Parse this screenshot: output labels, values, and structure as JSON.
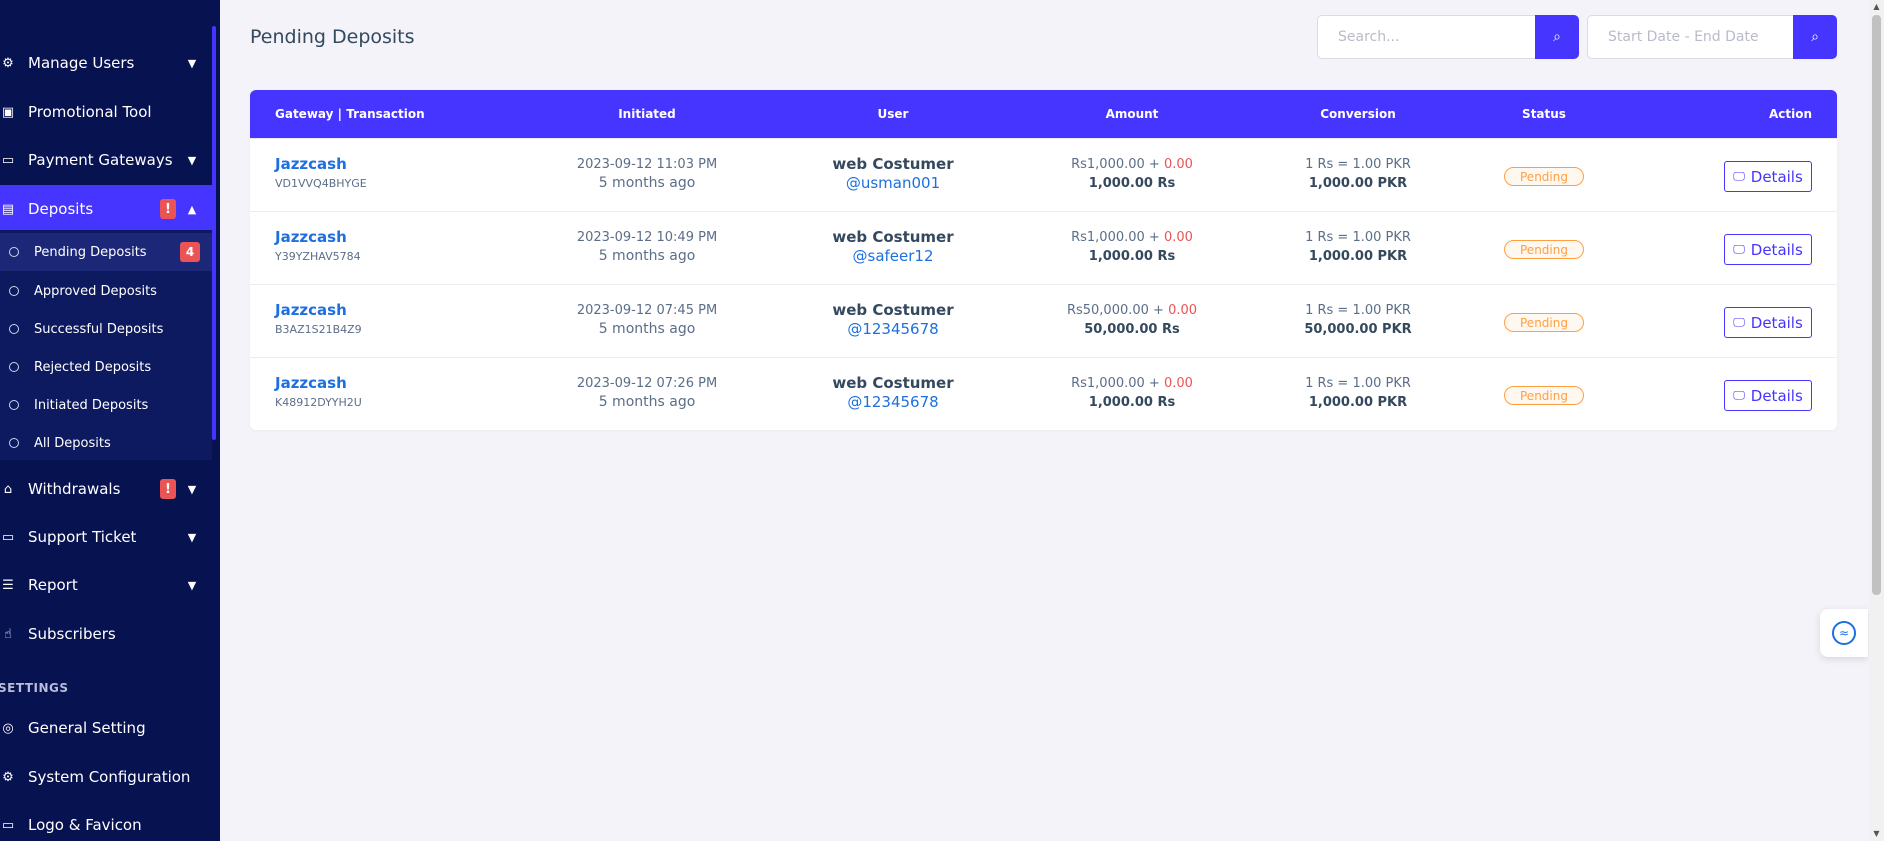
{
  "sidebar": {
    "menu": [
      {
        "label": "Manage Users",
        "icon": "users-cog-icon",
        "chevron": "⌄"
      },
      {
        "label": "Promotional Tool",
        "icon": "image-icon",
        "chevron": ""
      },
      {
        "label": "Payment Gateways",
        "icon": "credit-card-icon",
        "chevron": "⌄"
      },
      {
        "label": "Deposits",
        "icon": "file-invoice-icon",
        "chevron": "⌃",
        "alert": "!"
      },
      {
        "label": "Withdrawals",
        "icon": "bank-icon",
        "chevron": "⌄",
        "alert": "!"
      },
      {
        "label": "Support Ticket",
        "icon": "ticket-icon",
        "chevron": "⌄"
      },
      {
        "label": "Report",
        "icon": "list-icon",
        "chevron": "⌄"
      },
      {
        "label": "Subscribers",
        "icon": "thumbs-up-icon",
        "chevron": ""
      }
    ],
    "deposits_submenu": [
      {
        "label": "Pending Deposits",
        "count": "4"
      },
      {
        "label": "Approved Deposits"
      },
      {
        "label": "Successful Deposits"
      },
      {
        "label": "Rejected Deposits"
      },
      {
        "label": "Initiated Deposits"
      },
      {
        "label": "All Deposits"
      }
    ],
    "settings_title": "SETTINGS",
    "settings_menu": [
      {
        "label": "General Setting",
        "icon": "life-ring-icon"
      },
      {
        "label": "System Configuration",
        "icon": "gear-icon"
      },
      {
        "label": "Logo & Favicon",
        "icon": "ticket-icon"
      }
    ]
  },
  "header": {
    "title": "Pending Deposits",
    "search_placeholder": "Search...",
    "date_placeholder": "Start Date - End Date"
  },
  "table": {
    "columns": [
      "Gateway | Transaction",
      "Initiated",
      "User",
      "Amount",
      "Conversion",
      "Status",
      "Action"
    ],
    "rows": [
      {
        "gateway": "Jazzcash",
        "trx": "VD1VVQ4BHYGE",
        "date": "2023-09-12 11:03 PM",
        "ago": "5 months ago",
        "user": "web Costumer",
        "handle": "@usman001",
        "amount": "Rs1,000.00 + ",
        "charge": "0.00",
        "total": "1,000.00 Rs",
        "rate": "1 Rs = 1.00 PKR",
        "converted": "1,000.00 PKR",
        "status": "Pending",
        "action": "Details"
      },
      {
        "gateway": "Jazzcash",
        "trx": "Y39YZHAV5784",
        "date": "2023-09-12 10:49 PM",
        "ago": "5 months ago",
        "user": "web Costumer",
        "handle": "@safeer12",
        "amount": "Rs1,000.00 + ",
        "charge": "0.00",
        "total": "1,000.00 Rs",
        "rate": "1 Rs = 1.00 PKR",
        "converted": "1,000.00 PKR",
        "status": "Pending",
        "action": "Details"
      },
      {
        "gateway": "Jazzcash",
        "trx": "B3AZ1S21B4Z9",
        "date": "2023-09-12 07:45 PM",
        "ago": "5 months ago",
        "user": "web Costumer",
        "handle": "@12345678",
        "amount": "Rs50,000.00 + ",
        "charge": "0.00",
        "total": "50,000.00 Rs",
        "rate": "1 Rs = 1.00 PKR",
        "converted": "50,000.00 PKR",
        "status": "Pending",
        "action": "Details"
      },
      {
        "gateway": "Jazzcash",
        "trx": "K48912DYYH2U",
        "date": "2023-09-12 07:26 PM",
        "ago": "5 months ago",
        "user": "web Costumer",
        "handle": "@12345678",
        "amount": "Rs1,000.00 + ",
        "charge": "0.00",
        "total": "1,000.00 Rs",
        "rate": "1 Rs = 1.00 PKR",
        "converted": "1,000.00 PKR",
        "status": "Pending",
        "action": "Details"
      }
    ]
  },
  "colors": {
    "sidebar_bg": "#071251",
    "accent": "#4634ff",
    "danger": "#ea5455",
    "warning": "#ff9f43",
    "link": "#1e6fe0"
  }
}
